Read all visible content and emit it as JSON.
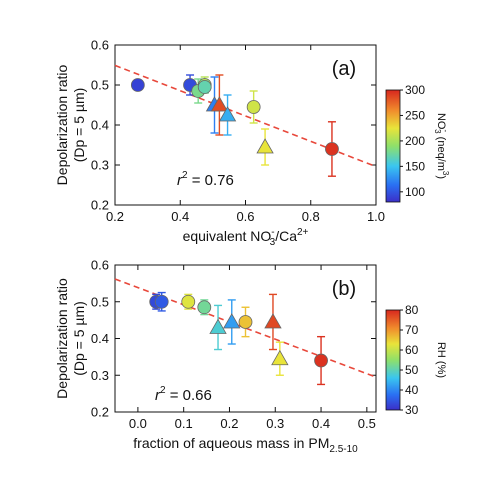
{
  "chart_data": [
    {
      "type": "scatter",
      "panel_label": "(a)",
      "ylabel_line1": "Depolarization ratio",
      "ylabel_line2": "(Dp = 5 µm)",
      "xlabel": {
        "base": "equivalent NO",
        "sub": "3",
        "sup": "-",
        "mid": "/Ca",
        "sup2": "2+"
      },
      "xlim": [
        0.2,
        1.0
      ],
      "ylim": [
        0.2,
        0.6
      ],
      "xticks": [
        "0.2",
        "0.4",
        "0.6",
        "0.8",
        "1.0"
      ],
      "yticks": [
        "0.2",
        "0.3",
        "0.4",
        "0.5",
        "0.6"
      ],
      "r2_text": {
        "r": "r",
        "sup": "2",
        "rest": " = 0.76"
      },
      "fit_line": [
        [
          0.2,
          0.549
        ],
        [
          1.0,
          0.296
        ]
      ],
      "colorbar": {
        "label_parts": {
          "a": "NO",
          "sub": "3",
          "sup": "-",
          "b": " (neq/m",
          "sup2": "3",
          "c": ")"
        },
        "range": [
          80,
          300
        ],
        "ticks": [
          "100",
          "150",
          "200",
          "250",
          "300"
        ]
      },
      "points": [
        {
          "x": 0.27,
          "y": 0.5,
          "err": 0.0,
          "marker": "circle",
          "c": 90
        },
        {
          "x": 0.43,
          "y": 0.5,
          "err": 0.025,
          "marker": "circle",
          "c": 95
        },
        {
          "x": 0.455,
          "y": 0.485,
          "err": 0.03,
          "marker": "circle",
          "c": 180
        },
        {
          "x": 0.475,
          "y": 0.5,
          "err": 0.02,
          "marker": "circle",
          "c": 205
        },
        {
          "x": 0.475,
          "y": 0.495,
          "err": 0.015,
          "marker": "circle",
          "c": 170
        },
        {
          "x": 0.505,
          "y": 0.45,
          "err": 0.07,
          "marker": "triangle",
          "c": 120
        },
        {
          "x": 0.52,
          "y": 0.45,
          "err": 0.075,
          "marker": "triangle",
          "c": 285
        },
        {
          "x": 0.545,
          "y": 0.425,
          "err": 0.05,
          "marker": "triangle",
          "c": 140
        },
        {
          "x": 0.625,
          "y": 0.445,
          "err": 0.04,
          "marker": "circle",
          "c": 215
        },
        {
          "x": 0.66,
          "y": 0.345,
          "err": 0.045,
          "marker": "triangle",
          "c": 225
        },
        {
          "x": 0.865,
          "y": 0.34,
          "err": 0.068,
          "marker": "circle",
          "c": 295
        }
      ]
    },
    {
      "type": "scatter",
      "panel_label": "(b)",
      "ylabel_line1": "Depolarization ratio",
      "ylabel_line2": "(Dp = 5 µm)",
      "xlabel": {
        "base": "fraction of aqueous mass in PM",
        "sub": "2.5-10"
      },
      "xlim": [
        -0.05,
        0.52
      ],
      "ylim": [
        0.2,
        0.6
      ],
      "xticks": [
        "0.0",
        "0.1",
        "0.2",
        "0.3",
        "0.4",
        "0.5"
      ],
      "yticks": [
        "0.2",
        "0.3",
        "0.4",
        "0.5",
        "0.6"
      ],
      "r2_text": {
        "r": "r",
        "sup": "2",
        "rest": " = 0.66"
      },
      "fit_line": [
        [
          -0.05,
          0.562
        ],
        [
          0.52,
          0.295
        ]
      ],
      "colorbar": {
        "label_parts": {
          "a": "RH (%)"
        },
        "range": [
          30,
          80
        ],
        "ticks": [
          "30",
          "40",
          "50",
          "60",
          "70",
          "80"
        ]
      },
      "points": [
        {
          "x": 0.04,
          "y": 0.5,
          "err": 0.02,
          "marker": "circle",
          "c": 33
        },
        {
          "x": 0.052,
          "y": 0.5,
          "err": 0.025,
          "marker": "circle",
          "c": 35
        },
        {
          "x": 0.11,
          "y": 0.5,
          "err": 0.02,
          "marker": "circle",
          "c": 62
        },
        {
          "x": 0.145,
          "y": 0.485,
          "err": 0.02,
          "marker": "circle",
          "c": 52
        },
        {
          "x": 0.175,
          "y": 0.43,
          "err": 0.06,
          "marker": "triangle",
          "c": 48
        },
        {
          "x": 0.205,
          "y": 0.445,
          "err": 0.06,
          "marker": "triangle",
          "c": 42
        },
        {
          "x": 0.235,
          "y": 0.445,
          "err": 0.04,
          "marker": "circle",
          "c": 66
        },
        {
          "x": 0.295,
          "y": 0.445,
          "err": 0.075,
          "marker": "triangle",
          "c": 77
        },
        {
          "x": 0.31,
          "y": 0.345,
          "err": 0.045,
          "marker": "triangle",
          "c": 63
        },
        {
          "x": 0.4,
          "y": 0.34,
          "err": 0.065,
          "marker": "circle",
          "c": 79
        }
      ]
    }
  ]
}
